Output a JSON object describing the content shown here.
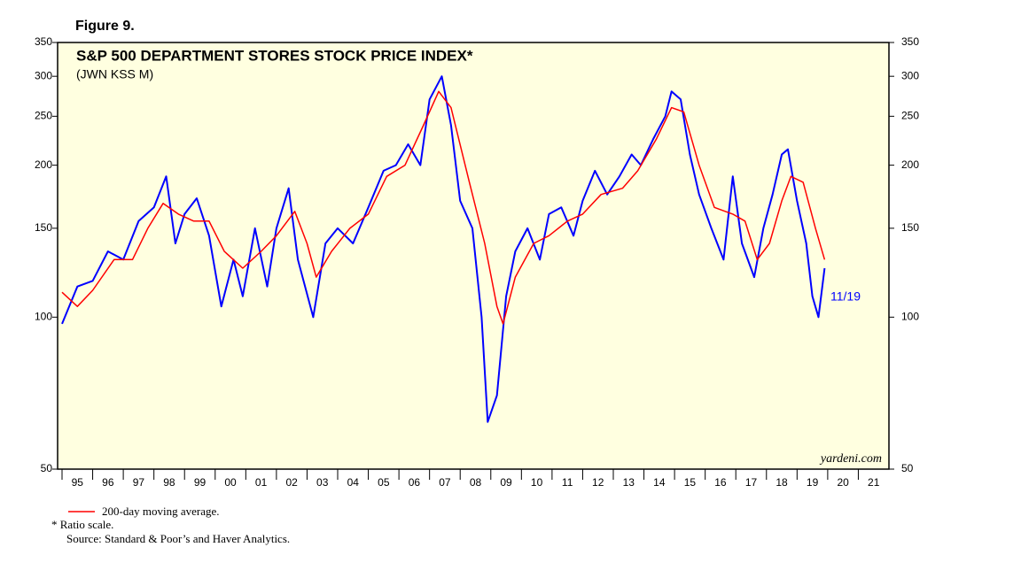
{
  "chart_data": {
    "type": "line",
    "figure": "Figure 9.",
    "title": "S&P 500 DEPARTMENT STORES STOCK PRICE INDEX*",
    "subtitle": "(JWN KSS M)",
    "annotation": "11/19",
    "watermark": "yardeni.com",
    "footnotes": [
      "*  Ratio scale.",
      "Source: Standard & Poor’s and Haver Analytics."
    ],
    "log_scale": true,
    "legend": "bottom-left",
    "xlim": [
      1995,
      2022
    ],
    "xticks": [
      {
        "value": 1995.5,
        "label": "95"
      },
      {
        "value": 1996.5,
        "label": "96"
      },
      {
        "value": 1997.5,
        "label": "97"
      },
      {
        "value": 1998.5,
        "label": "98"
      },
      {
        "value": 1999.5,
        "label": "99"
      },
      {
        "value": 2000.5,
        "label": "00"
      },
      {
        "value": 2001.5,
        "label": "01"
      },
      {
        "value": 2002.5,
        "label": "02"
      },
      {
        "value": 2003.5,
        "label": "03"
      },
      {
        "value": 2004.5,
        "label": "04"
      },
      {
        "value": 2005.5,
        "label": "05"
      },
      {
        "value": 2006.5,
        "label": "06"
      },
      {
        "value": 2007.5,
        "label": "07"
      },
      {
        "value": 2008.5,
        "label": "08"
      },
      {
        "value": 2009.5,
        "label": "09"
      },
      {
        "value": 2010.5,
        "label": "10"
      },
      {
        "value": 2011.5,
        "label": "11"
      },
      {
        "value": 2012.5,
        "label": "12"
      },
      {
        "value": 2013.5,
        "label": "13"
      },
      {
        "value": 2014.5,
        "label": "14"
      },
      {
        "value": 2015.5,
        "label": "15"
      },
      {
        "value": 2016.5,
        "label": "16"
      },
      {
        "value": 2017.5,
        "label": "17"
      },
      {
        "value": 2018.5,
        "label": "18"
      },
      {
        "value": 2019.5,
        "label": "19"
      },
      {
        "value": 2020.5,
        "label": "20"
      },
      {
        "value": 2021.5,
        "label": "21"
      }
    ],
    "ylim": [
      50,
      350
    ],
    "yticks": [
      50,
      100,
      150,
      200,
      250,
      300,
      350
    ],
    "series": [
      {
        "color": "#0000ff",
        "x": [
          1995.0,
          1995.5,
          1996.0,
          1996.5,
          1997.0,
          1997.5,
          1998.0,
          1998.4,
          1998.7,
          1999.0,
          1999.4,
          1999.8,
          2000.2,
          2000.6,
          2000.9,
          2001.3,
          2001.7,
          2002.0,
          2002.4,
          2002.7,
          2003.2,
          2003.6,
          2004.0,
          2004.5,
          2005.0,
          2005.5,
          2005.9,
          2006.3,
          2006.7,
          2007.0,
          2007.4,
          2007.7,
          2008.0,
          2008.4,
          2008.7,
          2008.9,
          2009.2,
          2009.5,
          2009.8,
          2010.2,
          2010.6,
          2010.9,
          2011.3,
          2011.7,
          2012.0,
          2012.4,
          2012.8,
          2013.2,
          2013.6,
          2013.9,
          2014.3,
          2014.7,
          2014.9,
          2015.2,
          2015.5,
          2015.8,
          2016.2,
          2016.6,
          2016.9,
          2017.2,
          2017.6,
          2017.9,
          2018.2,
          2018.5,
          2018.7,
          2019.0,
          2019.3,
          2019.5,
          2019.7,
          2019.9
        ],
        "values": [
          97,
          115,
          118,
          135,
          130,
          155,
          165,
          190,
          140,
          160,
          172,
          145,
          105,
          130,
          110,
          150,
          115,
          150,
          180,
          130,
          100,
          140,
          150,
          140,
          165,
          195,
          200,
          220,
          200,
          270,
          300,
          240,
          170,
          150,
          100,
          62,
          70,
          110,
          135,
          150,
          130,
          160,
          165,
          145,
          170,
          195,
          175,
          190,
          210,
          200,
          225,
          250,
          280,
          270,
          210,
          175,
          150,
          130,
          190,
          140,
          120,
          150,
          175,
          210,
          215,
          170,
          140,
          110,
          100,
          125
        ]
      },
      {
        "name": "200-day moving average.",
        "color": "#ff0000",
        "x": [
          1995.0,
          1995.5,
          1996.0,
          1996.7,
          1997.3,
          1997.8,
          1998.3,
          1998.8,
          1999.3,
          1999.8,
          2000.3,
          2000.9,
          2001.5,
          2002.0,
          2002.6,
          2003.0,
          2003.3,
          2003.8,
          2004.4,
          2005.0,
          2005.6,
          2006.2,
          2006.8,
          2007.3,
          2007.7,
          2008.3,
          2008.8,
          2009.2,
          2009.4,
          2009.8,
          2010.4,
          2010.9,
          2011.5,
          2012.0,
          2012.6,
          2013.3,
          2013.8,
          2014.4,
          2014.9,
          2015.3,
          2015.8,
          2016.3,
          2016.9,
          2017.3,
          2017.7,
          2018.1,
          2018.5,
          2018.8,
          2019.2,
          2019.6,
          2019.9
        ],
        "values": [
          112,
          105,
          113,
          130,
          130,
          150,
          168,
          160,
          155,
          155,
          135,
          125,
          135,
          145,
          162,
          140,
          120,
          135,
          150,
          160,
          190,
          200,
          240,
          280,
          260,
          185,
          140,
          105,
          97,
          120,
          140,
          145,
          155,
          160,
          175,
          180,
          195,
          225,
          260,
          255,
          200,
          165,
          160,
          155,
          130,
          140,
          170,
          190,
          185,
          150,
          130
        ]
      }
    ]
  }
}
